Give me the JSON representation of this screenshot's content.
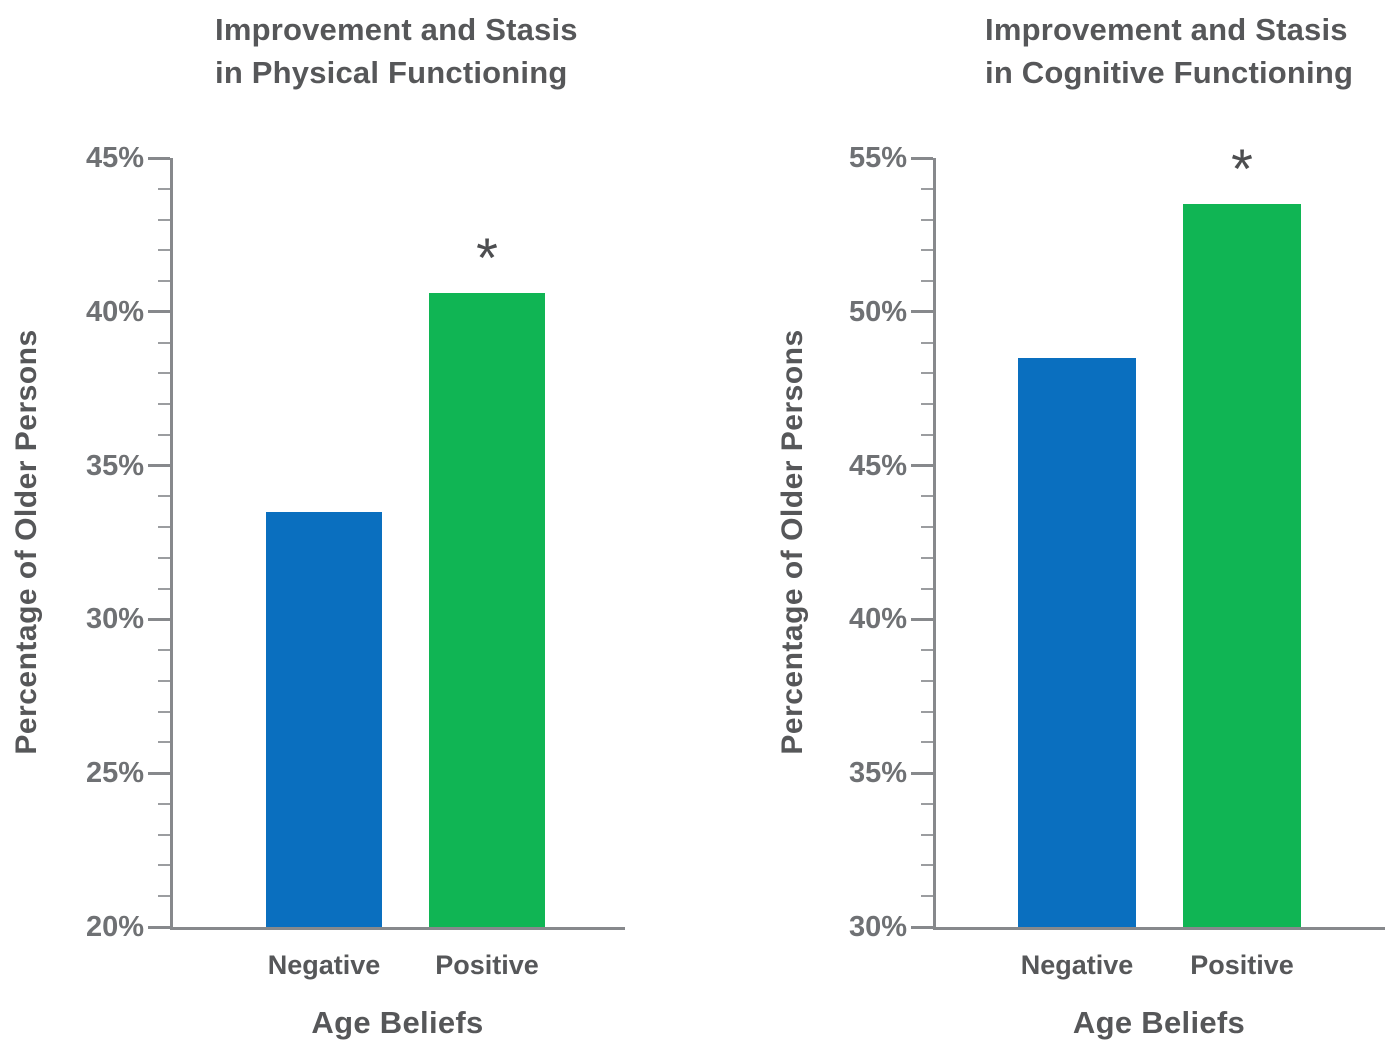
{
  "colors": {
    "negative_bar": "#0a6fbf",
    "positive_bar": "#10b554",
    "axis": "#87898c",
    "text": "#565759",
    "tick_text": "#6f7174"
  },
  "marker": {
    "significance": "*"
  },
  "chart_data": [
    {
      "type": "bar",
      "title": "Improvement and Stasis\nin Physical Functioning",
      "ylabel": "Percentage of Older Persons",
      "xlabel": "Age Beliefs",
      "categories": [
        "Negative",
        "Positive"
      ],
      "values": [
        33.5,
        40.6
      ],
      "significant": [
        false,
        true
      ],
      "ymin": 20,
      "ymax": 45,
      "ytick_major_step": 5,
      "ytick_minor_step": 1,
      "ytick_labels": [
        "45%",
        "40%",
        "35%",
        "30%",
        "25%",
        "20%"
      ],
      "grid": false,
      "legend": false
    },
    {
      "type": "bar",
      "title": "Improvement and Stasis\nin Cognitive Functioning",
      "ylabel": "Percentage of Older Persons",
      "xlabel": "Age Beliefs",
      "categories": [
        "Negative",
        "Positive"
      ],
      "values": [
        48.5,
        53.5
      ],
      "significant": [
        false,
        true
      ],
      "ymin": 30,
      "ymax": 55,
      "ytick_major_step": 5,
      "ytick_minor_step": 1,
      "ytick_labels": [
        "55%",
        "50%",
        "45%",
        "40%",
        "35%",
        "30%"
      ],
      "grid": false,
      "legend": false
    }
  ]
}
